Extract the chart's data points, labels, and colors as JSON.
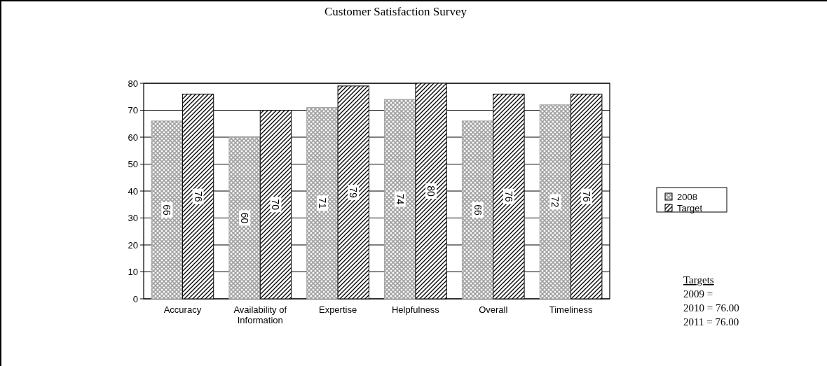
{
  "chart_data": {
    "type": "bar",
    "title": "Customer Satisfaction Survey",
    "categories": [
      "Accuracy",
      "Availability of Information",
      "Expertise",
      "Helpfulness",
      "Overall",
      "Timeliness"
    ],
    "series": [
      {
        "name": "2008",
        "color": "#a0a0a0",
        "values": [
          66,
          60,
          71,
          74,
          66,
          72
        ]
      },
      {
        "name": "Target",
        "color": "#000000",
        "values": [
          76,
          70,
          79,
          80,
          76,
          76
        ]
      }
    ],
    "ylim": [
      0,
      80
    ],
    "yticks": [
      0,
      10,
      20,
      30,
      40,
      50,
      60,
      70,
      80
    ],
    "grid": "y",
    "legend": "right",
    "data_labels": true,
    "annotations": [
      "Targets",
      "2009 =",
      "2010 = 76.00",
      "2011 = 76.00"
    ]
  }
}
